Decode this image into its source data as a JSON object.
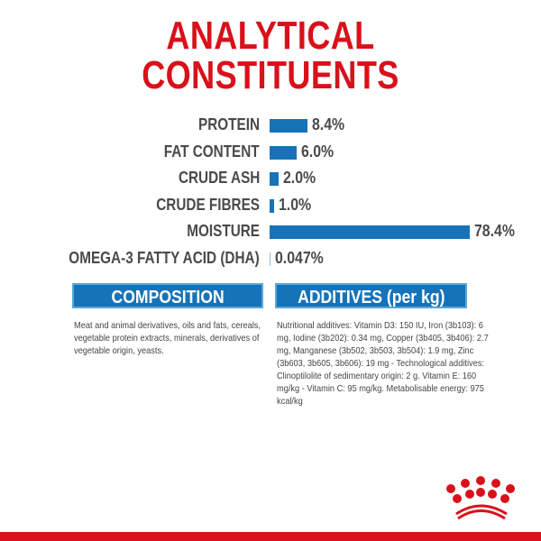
{
  "title_line1": "ANALYTICAL",
  "title_line2": "CONSTITUENTS",
  "chart_data": {
    "type": "bar",
    "orientation": "horizontal",
    "categories": [
      "PROTEIN",
      "FAT CONTENT",
      "CRUDE ASH",
      "CRUDE FIBRES",
      "MOISTURE",
      "OMEGA-3 FATTY ACID (DHA)"
    ],
    "values": [
      8.4,
      6.0,
      2.0,
      1.0,
      78.4,
      0.047
    ],
    "value_labels": [
      "8.4%",
      "6.0%",
      "2.0%",
      "1.0%",
      "78.4%",
      "0.047%"
    ],
    "unit": "%",
    "bar_color": "#1673b8",
    "grid": false
  },
  "composition": {
    "heading": "COMPOSITION",
    "text": "Meat and animal derivatives, oils and fats, cereals, vegetable protein extracts, minerals, derivatives of vegetable origin, yeasts."
  },
  "additives": {
    "heading": "ADDITIVES (per kg)",
    "text": "Nutritional additives: Vitamin D3: 150 IU, Iron (3b103): 6 mg, Iodine (3b202): 0.34 mg, Copper (3b405, 3b406): 2.7 mg, Manganese (3b502, 3b503, 3b504): 1.9 mg, Zinc (3b603, 3b605, 3b606): 19 mg - Technological additives: Clinoptilolite of sedimentary origin: 2 g. Vitamin E: 160 mg/kg - Vitamin C: 95 mg/kg. Metabolisable energy: 975 kcal/kg"
  },
  "brand_color": "#d8111a",
  "logo": "royal-canin-crown-icon"
}
